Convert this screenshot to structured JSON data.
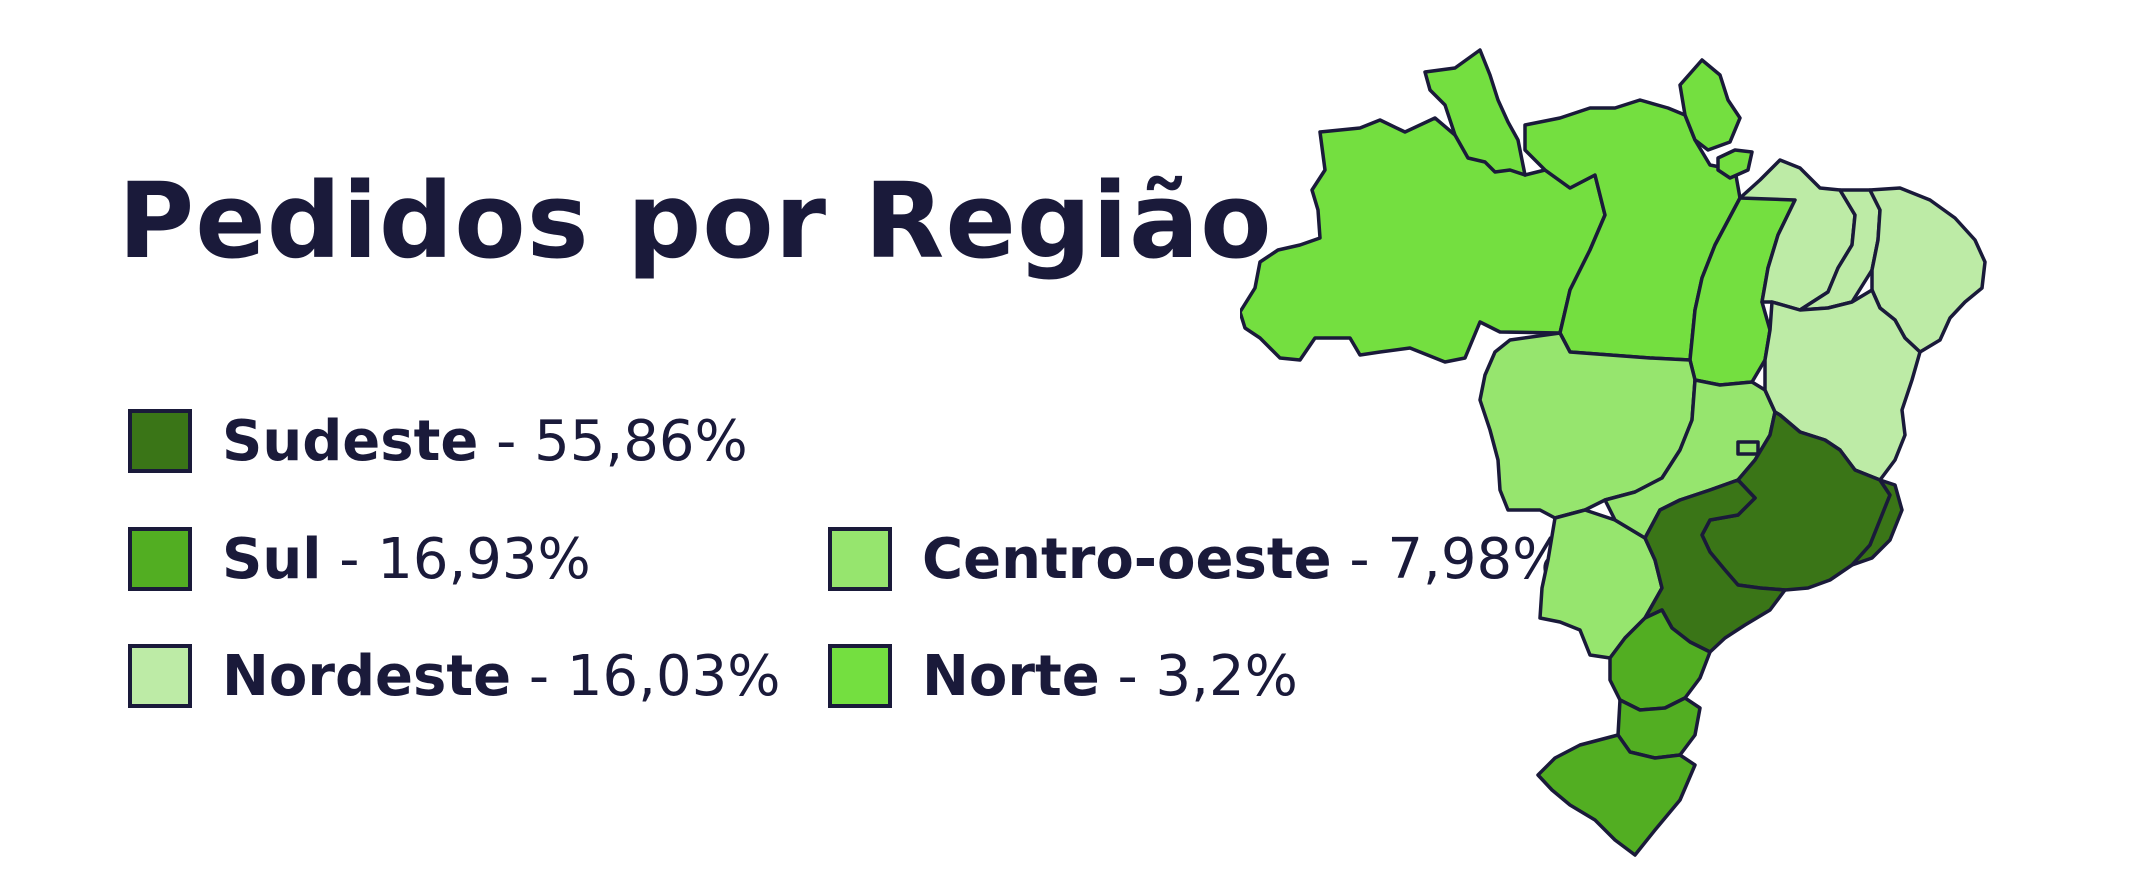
{
  "title": "Pedidos por Região",
  "legend": [
    {
      "name": "Sudeste",
      "separator": " - ",
      "value": "55,86%",
      "color": "#3a7517"
    },
    {
      "name": "Sul",
      "separator": " - ",
      "value": "16,93%",
      "color": "#52ae22"
    },
    {
      "name": "Nordeste",
      "separator": " - ",
      "value": "16,03%",
      "color": "#bdeba6"
    },
    {
      "name": "Centro-oeste",
      "separator": " - ",
      "value": "7,98%",
      "color": "#96e56e"
    },
    {
      "name": "Norte",
      "separator": " - ",
      "value": "3,2%",
      "color": "#74df40"
    }
  ],
  "map": {
    "stroke_color": "#1a1a3a",
    "region_colors": {
      "norte": "#74df40",
      "nordeste": "#bdeba6",
      "centro_oeste": "#96e56e",
      "sudeste": "#3a7517",
      "sul": "#52ae22"
    }
  }
}
